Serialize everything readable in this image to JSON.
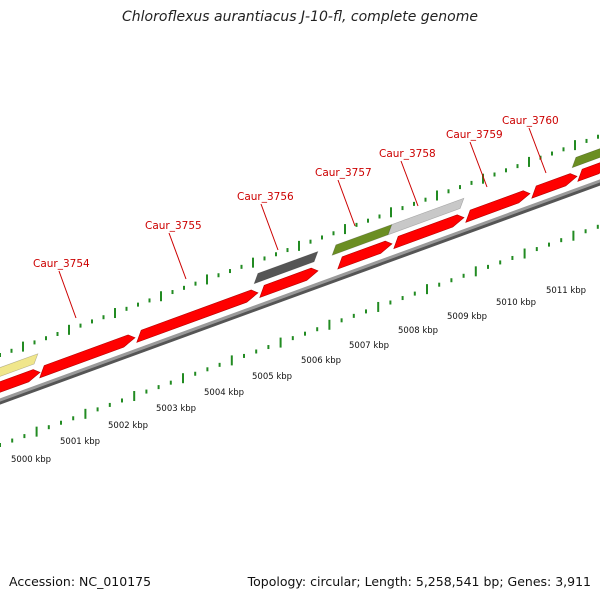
{
  "title": "Chloroflexus aurantiacus J-10-fl, complete genome",
  "footer": {
    "accession": "Accession: NC_010175",
    "summary": "Topology: circular; Length: 5,258,541 bp; Genes: 3,911"
  },
  "colors": {
    "cds": "#ff0000",
    "gene_olive": "#6b8e23",
    "gene_dark": "#555555",
    "gene_light": "#c8c8c8",
    "gene_khaki": "#f0e68c",
    "backbone": "#9a9a9a",
    "tick": "#228b22",
    "label": "#cc0000"
  },
  "gene_labels": [
    "Caur_3754",
    "Caur_3755",
    "Caur_3756",
    "Caur_3757",
    "Caur_3758",
    "Caur_3759",
    "Caur_3760"
  ],
  "scale_labels": [
    "5000 kbp",
    "5001 kbp",
    "5002 kbp",
    "5003 kbp",
    "5004 kbp",
    "5005 kbp",
    "5006 kbp",
    "5007 kbp",
    "5008 kbp",
    "5009 kbp",
    "5010 kbp",
    "5011 kbp"
  ]
}
